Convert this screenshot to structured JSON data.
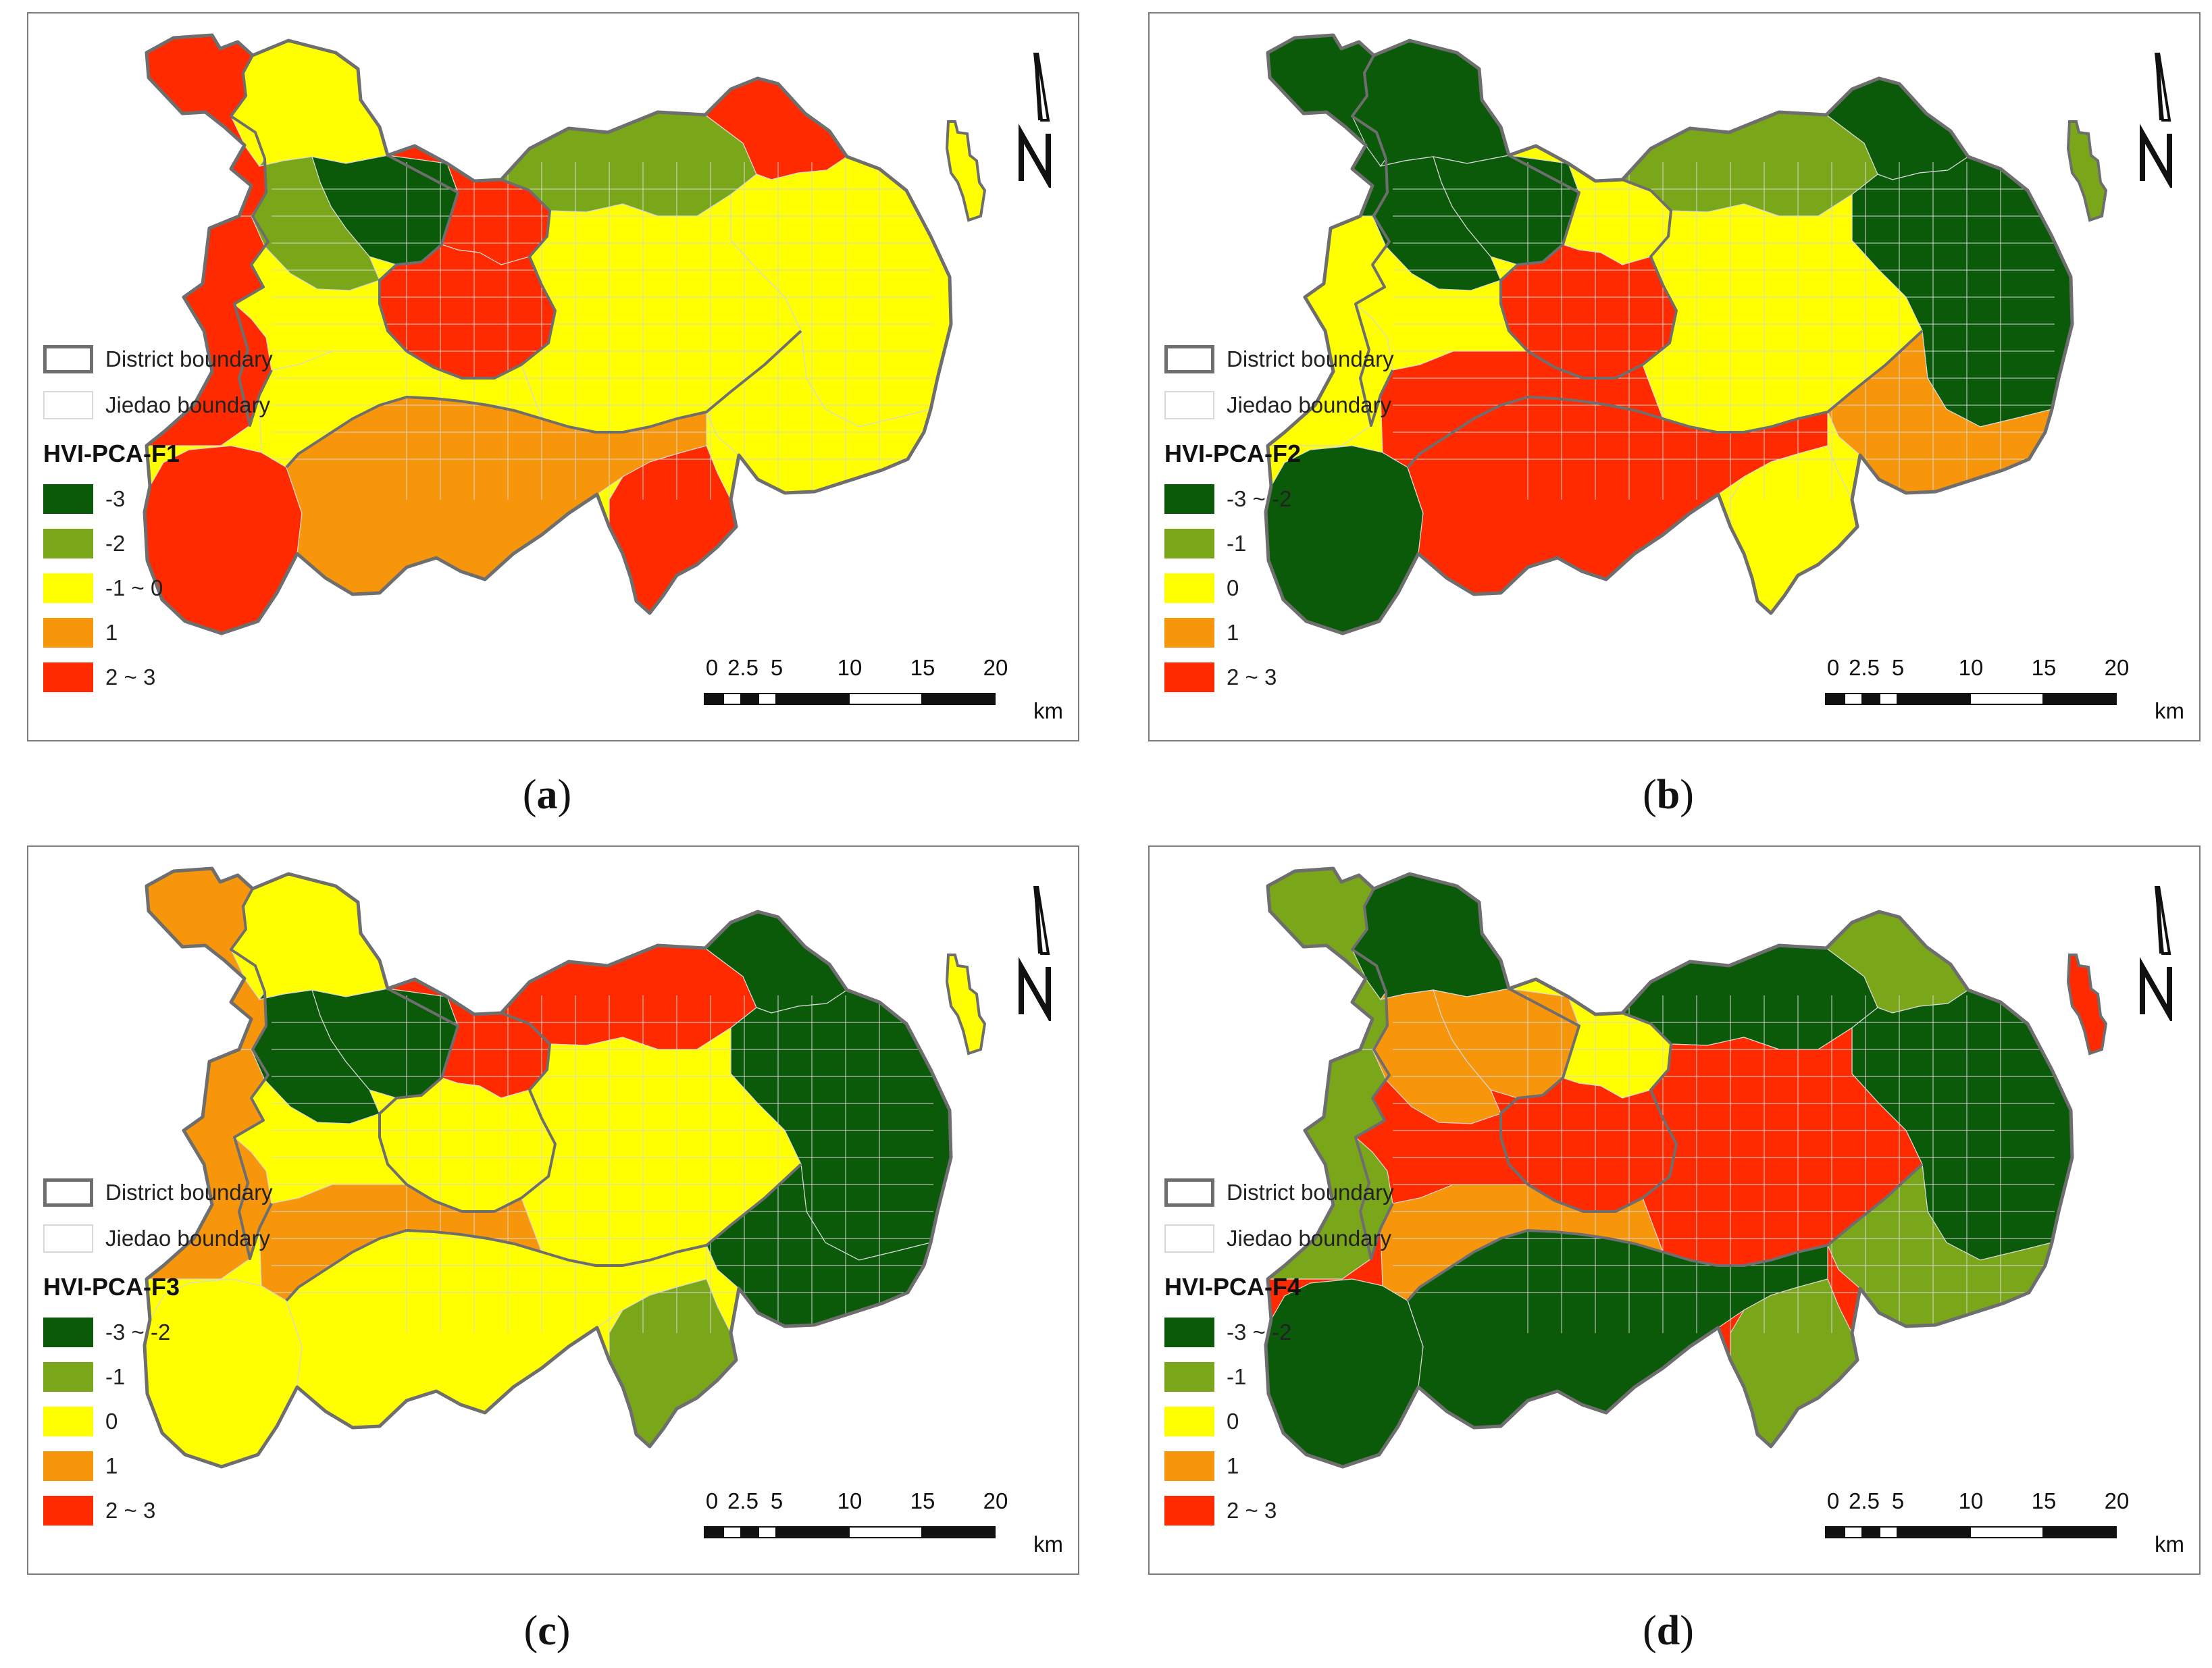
{
  "colors": {
    "dark_green": "#0a5a0a",
    "light_green": "#7aa61a",
    "yellow": "#ffff00",
    "orange": "#f7960a",
    "red": "#ff2a00",
    "district_boundary": "#6e6e6e",
    "jiedao_boundary": "#d8d8d8"
  },
  "legend_boundaries": {
    "district": "District boundary",
    "jiedao": "Jiedao boundary"
  },
  "scale_bar": {
    "ticks": [
      "0",
      "2.5",
      "5",
      "10",
      "15",
      "20"
    ],
    "unit": "km"
  },
  "north_arrow_icon": "north-arrow-icon",
  "panels": [
    {
      "caption_letter": "a",
      "legend_title": "HVI-PCA-F1",
      "classes": [
        {
          "label": "-3",
          "color": "#0a5a0a"
        },
        {
          "label": "-2",
          "color": "#7aa61a"
        },
        {
          "label": "-1 ~ 0",
          "color": "#ffff00"
        },
        {
          "label": "1",
          "color": "#f7960a"
        },
        {
          "label": "2 ~ 3",
          "color": "#ff2a00"
        }
      ],
      "inset_color": "#ffff00",
      "regions": {
        "nw": "#ff2a00",
        "n_mid": "#ffff00",
        "nw_center": "#0a5a0a",
        "west_mid": "#7aa61a",
        "west_edge": "#ff2a00",
        "sw": "#ff2a00",
        "center_n": "#ff2a00",
        "center": "#ff2a00",
        "ne": "#7aa61a",
        "ne_top": "#ff2a00",
        "east": "#ffff00",
        "se": "#ffff00",
        "south": "#f7960a",
        "south_pen": "#ff2a00",
        "east_center": "#ffff00",
        "s_center": "#ffff00"
      }
    },
    {
      "caption_letter": "b",
      "legend_title": "HVI-PCA-F2",
      "classes": [
        {
          "label": "-3 ~ -2",
          "color": "#0a5a0a"
        },
        {
          "label": "-1",
          "color": "#7aa61a"
        },
        {
          "label": "0",
          "color": "#ffff00"
        },
        {
          "label": "1",
          "color": "#f7960a"
        },
        {
          "label": "2 ~ 3",
          "color": "#ff2a00"
        }
      ],
      "inset_color": "#7aa61a",
      "regions": {
        "nw": "#0a5a0a",
        "n_mid": "#0a5a0a",
        "nw_center": "#0a5a0a",
        "west_mid": "#0a5a0a",
        "west_edge": "#ffff00",
        "sw": "#0a5a0a",
        "center_n": "#ffff00",
        "center": "#ff2a00",
        "ne": "#7aa61a",
        "ne_top": "#0a5a0a",
        "east": "#0a5a0a",
        "se": "#f7960a",
        "south": "#ff2a00",
        "south_pen": "#ffff00",
        "east_center": "#ffff00",
        "s_center": "#ff2a00"
      }
    },
    {
      "caption_letter": "c",
      "legend_title": "HVI-PCA-F3",
      "classes": [
        {
          "label": "-3 ~ -2",
          "color": "#0a5a0a"
        },
        {
          "label": "-1",
          "color": "#7aa61a"
        },
        {
          "label": "0",
          "color": "#ffff00"
        },
        {
          "label": "1",
          "color": "#f7960a"
        },
        {
          "label": "2 ~ 3",
          "color": "#ff2a00"
        }
      ],
      "inset_color": "#ffff00",
      "regions": {
        "nw": "#f7960a",
        "n_mid": "#ffff00",
        "nw_center": "#0a5a0a",
        "west_mid": "#0a5a0a",
        "west_edge": "#f7960a",
        "sw": "#ffff00",
        "center_n": "#ff2a00",
        "center": "#ffff00",
        "ne": "#ff2a00",
        "ne_top": "#0a5a0a",
        "east": "#0a5a0a",
        "se": "#0a5a0a",
        "south": "#ffff00",
        "south_pen": "#7aa61a",
        "east_center": "#ffff00",
        "s_center": "#f7960a"
      }
    },
    {
      "caption_letter": "d",
      "legend_title": "HVI-PCA-F4",
      "classes": [
        {
          "label": "-3 ~ -2",
          "color": "#0a5a0a"
        },
        {
          "label": "-1",
          "color": "#7aa61a"
        },
        {
          "label": "0",
          "color": "#ffff00"
        },
        {
          "label": "1",
          "color": "#f7960a"
        },
        {
          "label": "2 ~ 3",
          "color": "#ff2a00"
        }
      ],
      "inset_color": "#ff2a00",
      "regions": {
        "nw": "#7aa61a",
        "n_mid": "#0a5a0a",
        "nw_center": "#f7960a",
        "west_mid": "#f7960a",
        "west_edge": "#7aa61a",
        "sw": "#0a5a0a",
        "center_n": "#ffff00",
        "center": "#ff2a00",
        "ne": "#0a5a0a",
        "ne_top": "#7aa61a",
        "east": "#0a5a0a",
        "se": "#7aa61a",
        "south": "#0a5a0a",
        "south_pen": "#7aa61a",
        "east_center": "#ff2a00",
        "s_center": "#f7960a"
      }
    }
  ]
}
